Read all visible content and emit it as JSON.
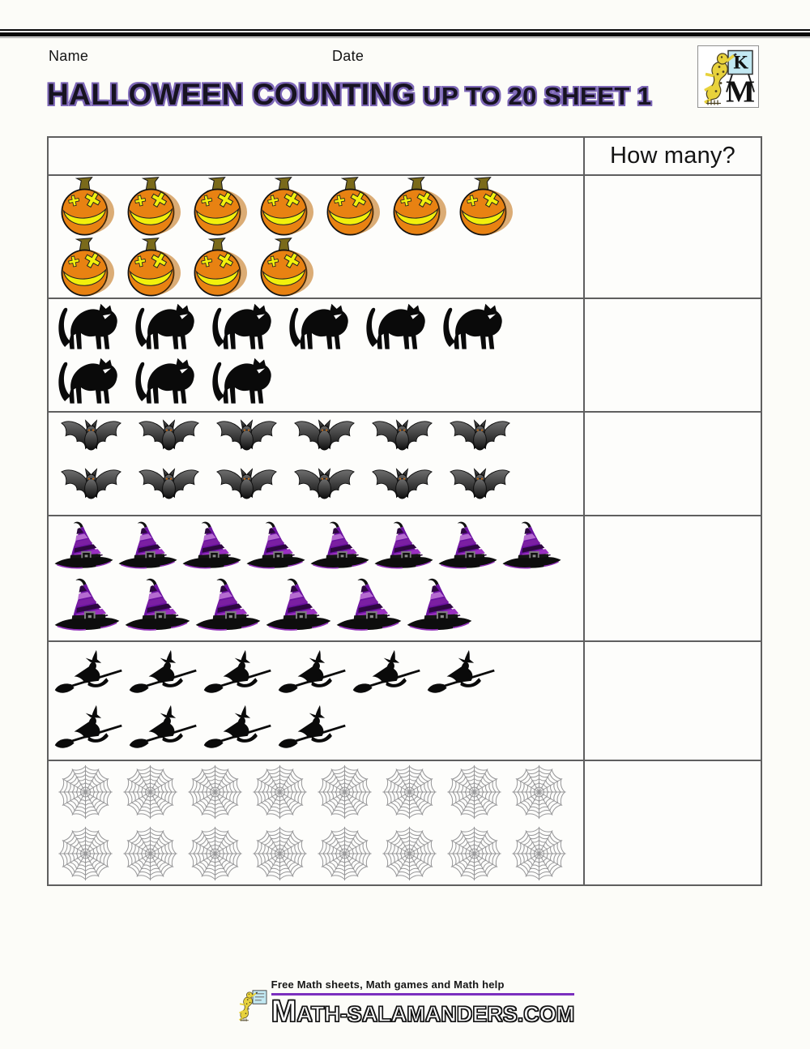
{
  "header": {
    "name_label": "Name",
    "date_label": "Date"
  },
  "title": {
    "main": "HALLOWEEN COUNTING",
    "suffix": " UP TO 20 SHEET 1"
  },
  "table": {
    "question": "How many?",
    "rows": [
      {
        "item": "pumpkin",
        "line1": 7,
        "line2": 4,
        "total": 11
      },
      {
        "item": "black-cat",
        "line1": 6,
        "line2": 3,
        "total": 9
      },
      {
        "item": "bat",
        "line1": 6,
        "line2": 6,
        "total": 12
      },
      {
        "item": "witch-hat",
        "line1": 8,
        "line2": 6,
        "total": 14
      },
      {
        "item": "witch-on-broom",
        "line1": 6,
        "line2": 4,
        "total": 10
      },
      {
        "item": "spider-web",
        "line1": 8,
        "line2": 8,
        "total": 16
      }
    ]
  },
  "logo": {
    "letter": "K",
    "monogram": "M"
  },
  "footer": {
    "tagline": "Free Math sheets, Math games and Math help",
    "site": "MATH-SALAMANDERS.COM"
  },
  "colors": {
    "title_outline": "#7e68b8",
    "accent_purple": "#7B2FBE",
    "pumpkin_orange": "#E88212",
    "pumpkin_stem": "#7A6A1A",
    "feature_yellow": "#F2F00C",
    "hat_purple": "#7B1FA2",
    "hat_light": "#B56BD0",
    "hat_dark": "#2D0740",
    "silhouette_black": "#0a0a0a",
    "web_gray": "#98989A",
    "table_border": "#5f5f5f"
  }
}
